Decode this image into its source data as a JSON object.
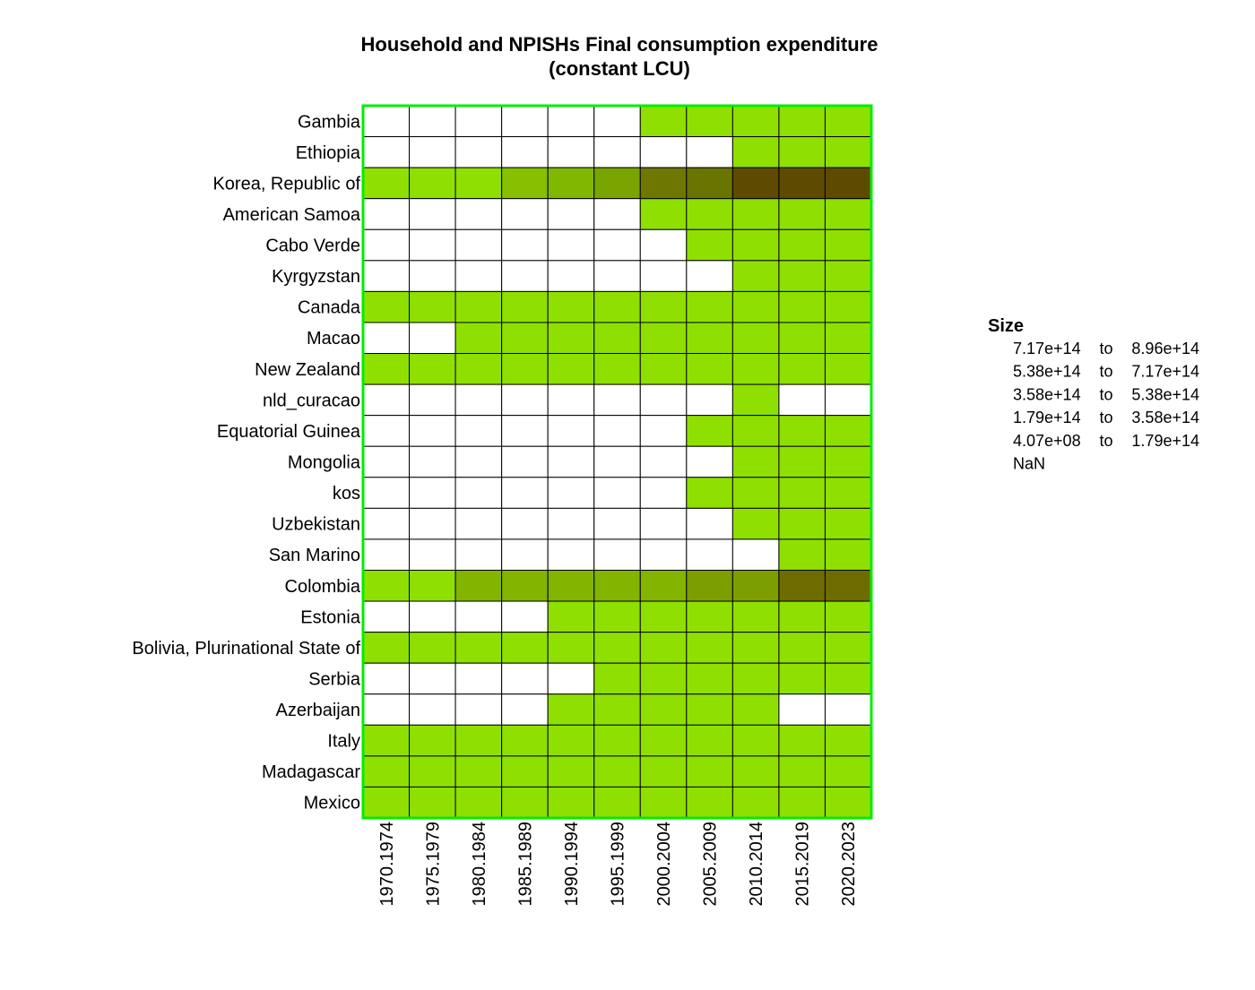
{
  "chart_data": {
    "type": "heatmap",
    "title_lines": [
      "Household and NPISHs Final consumption expenditure",
      "(constant LCU)"
    ],
    "xlabel": "",
    "ylabel": "",
    "columns": [
      "1970.1974",
      "1975.1979",
      "1980.1984",
      "1985.1989",
      "1990.1994",
      "1995.1999",
      "2000.2004",
      "2005.2009",
      "2010.2014",
      "2015.2019",
      "2020.2023"
    ],
    "rows": [
      "Gambia",
      "Ethiopia",
      "Korea, Republic of",
      "American Samoa",
      "Cabo Verde",
      "Kyrgyzstan",
      "Canada",
      "Macao",
      "New Zealand",
      "nld_curacao",
      "Equatorial Guinea",
      "Mongolia",
      "kos",
      "Uzbekistan",
      "San Marino",
      "Colombia",
      "Estonia",
      "Bolivia, Plurinational State of",
      "Serbia",
      "Azerbaijan",
      "Italy",
      "Madagascar",
      "Mexico"
    ],
    "cell_colors": {
      "nan": "#ffffff",
      "base": "#8fe000",
      "k1": "#86c000",
      "k2": "#80b800",
      "k3": "#7aa400",
      "k4": "#6e7800",
      "k5": "#6a7400",
      "k6": "#5e4a00",
      "c1": "#82b400",
      "c2": "#7c9e00",
      "c3": "#6e6c00"
    },
    "cells": [
      [
        "nan",
        "nan",
        "nan",
        "nan",
        "nan",
        "nan",
        "base",
        "base",
        "base",
        "base",
        "base"
      ],
      [
        "nan",
        "nan",
        "nan",
        "nan",
        "nan",
        "nan",
        "nan",
        "nan",
        "base",
        "base",
        "base"
      ],
      [
        "base",
        "base",
        "base",
        "k1",
        "k2",
        "k3",
        "k4",
        "k5",
        "k6",
        "k6",
        "k6"
      ],
      [
        "nan",
        "nan",
        "nan",
        "nan",
        "nan",
        "nan",
        "base",
        "base",
        "base",
        "base",
        "base"
      ],
      [
        "nan",
        "nan",
        "nan",
        "nan",
        "nan",
        "nan",
        "nan",
        "base",
        "base",
        "base",
        "base"
      ],
      [
        "nan",
        "nan",
        "nan",
        "nan",
        "nan",
        "nan",
        "nan",
        "nan",
        "base",
        "base",
        "base"
      ],
      [
        "base",
        "base",
        "base",
        "base",
        "base",
        "base",
        "base",
        "base",
        "base",
        "base",
        "base"
      ],
      [
        "nan",
        "nan",
        "base",
        "base",
        "base",
        "base",
        "base",
        "base",
        "base",
        "base",
        "base"
      ],
      [
        "base",
        "base",
        "base",
        "base",
        "base",
        "base",
        "base",
        "base",
        "base",
        "base",
        "base"
      ],
      [
        "nan",
        "nan",
        "nan",
        "nan",
        "nan",
        "nan",
        "nan",
        "nan",
        "base",
        "nan",
        "nan"
      ],
      [
        "nan",
        "nan",
        "nan",
        "nan",
        "nan",
        "nan",
        "nan",
        "base",
        "base",
        "base",
        "base"
      ],
      [
        "nan",
        "nan",
        "nan",
        "nan",
        "nan",
        "nan",
        "nan",
        "nan",
        "base",
        "base",
        "base"
      ],
      [
        "nan",
        "nan",
        "nan",
        "nan",
        "nan",
        "nan",
        "nan",
        "base",
        "base",
        "base",
        "base"
      ],
      [
        "nan",
        "nan",
        "nan",
        "nan",
        "nan",
        "nan",
        "nan",
        "nan",
        "base",
        "base",
        "base"
      ],
      [
        "nan",
        "nan",
        "nan",
        "nan",
        "nan",
        "nan",
        "nan",
        "nan",
        "nan",
        "base",
        "base"
      ],
      [
        "base",
        "base",
        "c1",
        "c1",
        "c1",
        "c1",
        "c1",
        "c2",
        "c2",
        "c3",
        "c3"
      ],
      [
        "nan",
        "nan",
        "nan",
        "nan",
        "base",
        "base",
        "base",
        "base",
        "base",
        "base",
        "base"
      ],
      [
        "base",
        "base",
        "base",
        "base",
        "base",
        "base",
        "base",
        "base",
        "base",
        "base",
        "base"
      ],
      [
        "nan",
        "nan",
        "nan",
        "nan",
        "nan",
        "base",
        "base",
        "base",
        "base",
        "base",
        "base"
      ],
      [
        "nan",
        "nan",
        "nan",
        "nan",
        "base",
        "base",
        "base",
        "base",
        "base",
        "nan",
        "nan"
      ],
      [
        "base",
        "base",
        "base",
        "base",
        "base",
        "base",
        "base",
        "base",
        "base",
        "base",
        "base"
      ],
      [
        "base",
        "base",
        "base",
        "base",
        "base",
        "base",
        "base",
        "base",
        "base",
        "base",
        "base"
      ],
      [
        "base",
        "base",
        "base",
        "base",
        "base",
        "base",
        "base",
        "base",
        "base",
        "base",
        "base"
      ]
    ],
    "legend": {
      "title": "Size",
      "position": "right",
      "items": [
        {
          "from": "7.17e+14",
          "sep": "to",
          "to": "8.96e+14"
        },
        {
          "from": "5.38e+14",
          "sep": "to",
          "to": "7.17e+14"
        },
        {
          "from": "3.58e+14",
          "sep": "to",
          "to": "5.38e+14"
        },
        {
          "from": "1.79e+14",
          "sep": "to",
          "to": "3.58e+14"
        },
        {
          "from": "4.07e+08",
          "sep": "to",
          "to": "1.79e+14"
        },
        {
          "from": "NaN",
          "sep": "",
          "to": ""
        }
      ]
    },
    "grid_line_color": "#000000",
    "frame_color": "#00ee00"
  }
}
